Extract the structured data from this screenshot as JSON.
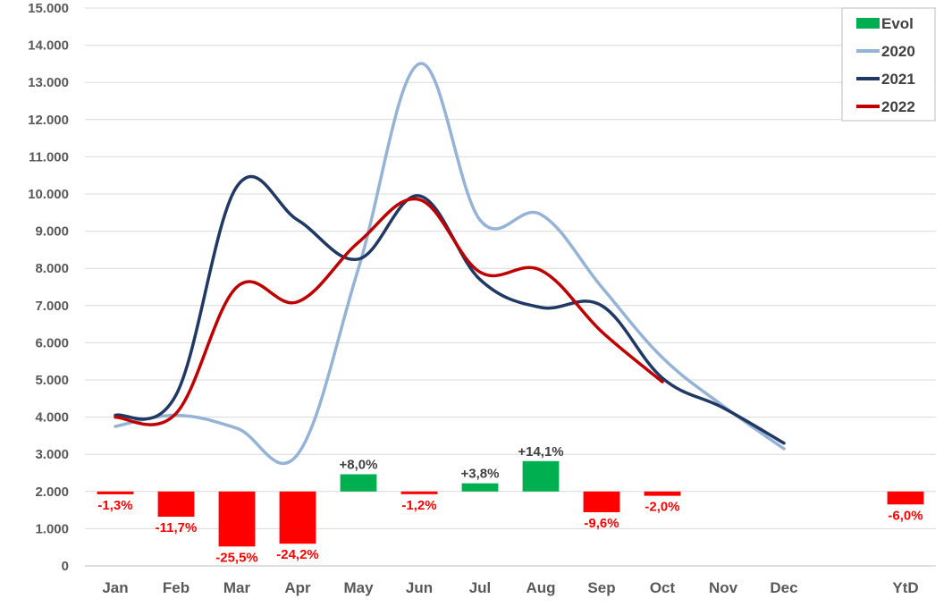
{
  "chart_data": {
    "type": "line",
    "categories": [
      "Jan",
      "Feb",
      "Mar",
      "Apr",
      "May",
      "Jun",
      "Jul",
      "Aug",
      "Sep",
      "Oct",
      "Nov",
      "Dec",
      "",
      "YtD"
    ],
    "ylim": [
      0,
      15000
    ],
    "yticks": [
      {
        "value": 0,
        "label": "0"
      },
      {
        "value": 1000,
        "label": "1.000"
      },
      {
        "value": 2000,
        "label": "2.000"
      },
      {
        "value": 3000,
        "label": "3.000"
      },
      {
        "value": 4000,
        "label": "4.000"
      },
      {
        "value": 5000,
        "label": "5.000"
      },
      {
        "value": 6000,
        "label": "6.000"
      },
      {
        "value": 7000,
        "label": "7.000"
      },
      {
        "value": 8000,
        "label": "8.000"
      },
      {
        "value": 9000,
        "label": "9.000"
      },
      {
        "value": 10000,
        "label": "10.000"
      },
      {
        "value": 11000,
        "label": "11.000"
      },
      {
        "value": 12000,
        "label": "12.000"
      },
      {
        "value": 13000,
        "label": "13.000"
      },
      {
        "value": 14000,
        "label": "14.000"
      },
      {
        "value": 15000,
        "label": "15.000"
      }
    ],
    "grid": true,
    "legend_position": "top-right",
    "series": [
      {
        "name": "2020",
        "type": "line",
        "color": "#95b3d7",
        "values": [
          3750,
          4050,
          3700,
          3000,
          8000,
          13500,
          9300,
          9450,
          7500,
          5600,
          4300,
          3150,
          null,
          null
        ]
      },
      {
        "name": "2021",
        "type": "line",
        "color": "#1f3864",
        "values": [
          4050,
          4600,
          10200,
          9300,
          8250,
          9950,
          7700,
          6950,
          7000,
          5050,
          4250,
          3300,
          null,
          null
        ]
      },
      {
        "name": "2022",
        "type": "line",
        "color": "#c00000",
        "values": [
          4000,
          4100,
          7500,
          7100,
          8700,
          9850,
          7900,
          7950,
          6300,
          4950,
          null,
          null,
          null,
          null
        ]
      }
    ],
    "evol": {
      "name": "Evol",
      "baseline": 2000,
      "pos_color": "#00b050",
      "neg_color": "#ff0000",
      "bar_scale": 58,
      "items": [
        {
          "category": "Jan",
          "value": -1.3,
          "label": "-1,3%"
        },
        {
          "category": "Feb",
          "value": -11.7,
          "label": "-11,7%"
        },
        {
          "category": "Mar",
          "value": -25.5,
          "label": "-25,5%"
        },
        {
          "category": "Apr",
          "value": -24.2,
          "label": "-24,2%"
        },
        {
          "category": "May",
          "value": 8.0,
          "label": "+8,0%"
        },
        {
          "category": "Jun",
          "value": -1.2,
          "label": "-1,2%"
        },
        {
          "category": "Jul",
          "value": 3.8,
          "label": "+3,8%"
        },
        {
          "category": "Aug",
          "value": 14.1,
          "label": "+14,1%"
        },
        {
          "category": "Sep",
          "value": -9.6,
          "label": "-9,6%"
        },
        {
          "category": "Oct",
          "value": -2.0,
          "label": "-2,0%"
        },
        {
          "category": "YtD",
          "value": -6.0,
          "label": "-6,0%"
        }
      ]
    },
    "legend": [
      "Evol",
      "2020",
      "2021",
      "2022"
    ]
  }
}
